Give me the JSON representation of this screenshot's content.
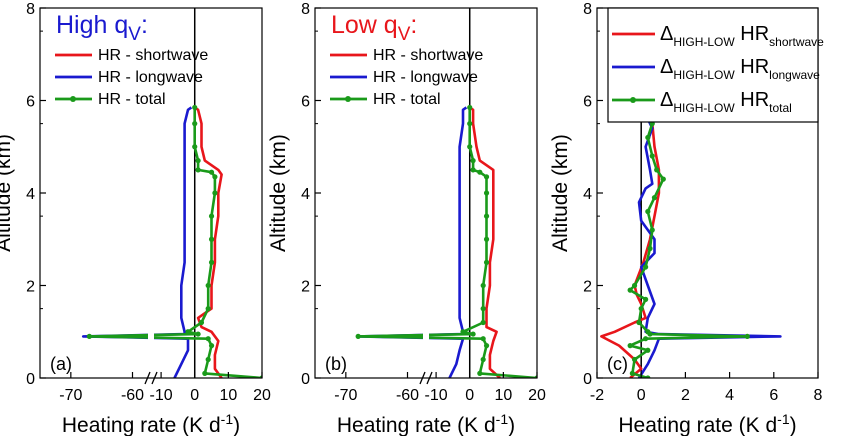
{
  "figure": {
    "colors": {
      "shortwave": "#e8161b",
      "longwave": "#1a1acf",
      "total": "#1a9a1a",
      "axis": "#000000"
    }
  },
  "chart_data": [
    {
      "type": "line",
      "panel_label": "(a)",
      "title": "High q",
      "title_sub": "V",
      "title_suffix": ":",
      "title_color": "#1a1acf",
      "xlabel": "Heating rate (K d",
      "xlabel_sup": "-1",
      "xlabel_close": ")",
      "ylabel": "Altitude (km)",
      "ylim": [
        0,
        8
      ],
      "yticks": [
        0,
        2,
        4,
        6,
        8
      ],
      "xticks": [
        "-70",
        "-60",
        "-10",
        "0",
        "10",
        "20"
      ],
      "xlim_broken": [
        [
          -75,
          -57
        ],
        [
          -13,
          20
        ]
      ],
      "grid": false,
      "legend_position": "top-left",
      "series": [
        {
          "name": "HR - shortwave",
          "color": "#e8161b",
          "key": "sw",
          "points": [
            [
              8,
              0.0
            ],
            [
              6,
              0.2
            ],
            [
              6,
              0.5
            ],
            [
              7,
              0.8
            ],
            [
              5,
              1.0
            ],
            [
              2,
              1.1
            ],
            [
              1,
              1.3
            ],
            [
              5,
              1.5
            ],
            [
              5,
              2.0
            ],
            [
              6,
              2.5
            ],
            [
              6,
              3.0
            ],
            [
              7,
              3.5
            ],
            [
              7,
              4.0
            ],
            [
              8,
              4.4
            ],
            [
              7,
              4.5
            ],
            [
              3,
              4.7
            ],
            [
              2,
              5.0
            ],
            [
              2,
              5.5
            ],
            [
              1,
              5.8
            ],
            [
              0,
              5.85
            ]
          ]
        },
        {
          "name": "HR - longwave",
          "color": "#1a1acf",
          "key": "lw",
          "points": [
            [
              -6,
              0.0
            ],
            [
              -4,
              0.3
            ],
            [
              -2,
              0.6
            ],
            [
              -2,
              0.85
            ],
            [
              -68,
              0.9
            ],
            [
              -3,
              0.95
            ],
            [
              -3,
              1.0
            ],
            [
              -4,
              1.3
            ],
            [
              -4,
              2.0
            ],
            [
              -3,
              2.5
            ],
            [
              -3,
              3.0
            ],
            [
              -3,
              3.5
            ],
            [
              -3,
              4.0
            ],
            [
              -3,
              4.5
            ],
            [
              -3,
              5.0
            ],
            [
              -3,
              5.5
            ],
            [
              -2,
              5.8
            ],
            [
              -1,
              5.85
            ]
          ]
        },
        {
          "name": "HR - total",
          "color": "#1a9a1a",
          "key": "tot",
          "points": [
            [
              20,
              0.0
            ],
            [
              3,
              0.1
            ],
            [
              4,
              0.4
            ],
            [
              5,
              0.7
            ],
            [
              4,
              0.85
            ],
            [
              -67,
              0.9
            ],
            [
              1,
              0.95
            ],
            [
              -2,
              1.0
            ],
            [
              2,
              1.2
            ],
            [
              4,
              1.5
            ],
            [
              4,
              2.0
            ],
            [
              5,
              2.5
            ],
            [
              5,
              3.0
            ],
            [
              5,
              3.5
            ],
            [
              6,
              4.0
            ],
            [
              6,
              4.35
            ],
            [
              5,
              4.45
            ],
            [
              1,
              4.5
            ],
            [
              1,
              4.7
            ],
            [
              0,
              5.0
            ],
            [
              0,
              5.5
            ],
            [
              0,
              5.85
            ]
          ]
        }
      ]
    },
    {
      "type": "line",
      "panel_label": "(b)",
      "title": "Low q",
      "title_sub": "V",
      "title_suffix": ":",
      "title_color": "#e8161b",
      "xlabel": "Heating rate (K d",
      "xlabel_sup": "-1",
      "xlabel_close": ")",
      "ylabel": "Altitude (km)",
      "ylim": [
        0,
        8
      ],
      "yticks": [
        0,
        2,
        4,
        6,
        8
      ],
      "xticks": [
        "-70",
        "-60",
        "-10",
        "0",
        "10",
        "20"
      ],
      "xlim_broken": [
        [
          -75,
          -57
        ],
        [
          -13,
          20
        ]
      ],
      "grid": false,
      "legend_position": "top-left",
      "series": [
        {
          "name": "HR - shortwave",
          "color": "#e8161b",
          "key": "sw",
          "points": [
            [
              9,
              0.0
            ],
            [
              6,
              0.2
            ],
            [
              6,
              0.5
            ],
            [
              7,
              0.8
            ],
            [
              8,
              1.0
            ],
            [
              5,
              1.1
            ],
            [
              5,
              1.3
            ],
            [
              5,
              1.5
            ],
            [
              6,
              2.0
            ],
            [
              6,
              2.5
            ],
            [
              7,
              3.0
            ],
            [
              7,
              3.5
            ],
            [
              7,
              4.0
            ],
            [
              7,
              4.5
            ],
            [
              3,
              4.7
            ],
            [
              2,
              5.0
            ],
            [
              1,
              5.5
            ],
            [
              1,
              5.8
            ],
            [
              0,
              5.85
            ]
          ]
        },
        {
          "name": "HR - longwave",
          "color": "#1a1acf",
          "key": "lw",
          "points": [
            [
              -6,
              0.0
            ],
            [
              -4,
              0.3
            ],
            [
              -3,
              0.6
            ],
            [
              -2,
              0.85
            ],
            [
              -68,
              0.9
            ],
            [
              -2,
              0.95
            ],
            [
              -2,
              1.0
            ],
            [
              -3,
              1.3
            ],
            [
              -3,
              2.0
            ],
            [
              -3,
              2.5
            ],
            [
              -3,
              3.0
            ],
            [
              -3,
              3.5
            ],
            [
              -3,
              4.0
            ],
            [
              -3,
              4.5
            ],
            [
              -3,
              5.0
            ],
            [
              -2,
              5.5
            ],
            [
              -2,
              5.8
            ],
            [
              -1,
              5.85
            ]
          ]
        },
        {
          "name": "HR - total",
          "color": "#1a9a1a",
          "key": "tot",
          "points": [
            [
              20,
              0.0
            ],
            [
              3,
              0.1
            ],
            [
              4,
              0.4
            ],
            [
              5,
              0.7
            ],
            [
              4,
              0.85
            ],
            [
              -68,
              0.9
            ],
            [
              1,
              0.95
            ],
            [
              -2,
              1.0
            ],
            [
              4,
              1.2
            ],
            [
              4,
              1.5
            ],
            [
              4,
              2.0
            ],
            [
              5,
              2.5
            ],
            [
              5,
              3.0
            ],
            [
              5,
              3.5
            ],
            [
              5,
              4.0
            ],
            [
              5,
              4.35
            ],
            [
              3,
              4.45
            ],
            [
              1,
              4.5
            ],
            [
              1,
              4.7
            ],
            [
              0,
              5.0
            ],
            [
              0,
              5.5
            ],
            [
              0,
              5.85
            ]
          ]
        }
      ]
    },
    {
      "type": "line",
      "panel_label": "(c)",
      "xlabel": "Heating rate (K d",
      "xlabel_sup": "-1",
      "xlabel_close": ")",
      "ylabel": "Altitude (km)",
      "xlim": [
        -2,
        8
      ],
      "xticks": [
        -2,
        0,
        2,
        4,
        6,
        8
      ],
      "ylim": [
        0,
        8
      ],
      "yticks": [
        0,
        2,
        4,
        6,
        8
      ],
      "grid": false,
      "legend_position": "top",
      "legend_prefix": "Δ",
      "legend_sub": "HIGH-LOW",
      "legend_mid": " HR",
      "series": [
        {
          "name": "shortwave",
          "color": "#e8161b",
          "key": "sw",
          "points": [
            [
              -0.5,
              0.0
            ],
            [
              0.0,
              0.2
            ],
            [
              -0.3,
              0.4
            ],
            [
              -1.0,
              0.7
            ],
            [
              -1.8,
              0.9
            ],
            [
              -1.2,
              1.0
            ],
            [
              -0.3,
              1.2
            ],
            [
              0.2,
              1.3
            ],
            [
              0.0,
              1.6
            ],
            [
              -0.2,
              1.8
            ],
            [
              -0.3,
              2.0
            ],
            [
              0.1,
              2.5
            ],
            [
              0.4,
              3.0
            ],
            [
              0.6,
              3.5
            ],
            [
              0.8,
              4.0
            ],
            [
              0.8,
              4.5
            ],
            [
              0.6,
              5.0
            ],
            [
              0.5,
              5.5
            ],
            [
              0.3,
              5.8
            ],
            [
              0.1,
              5.85
            ]
          ]
        },
        {
          "name": "longwave",
          "color": "#1a1acf",
          "key": "lw",
          "points": [
            [
              -0.1,
              0.0
            ],
            [
              0.3,
              0.3
            ],
            [
              0.6,
              0.6
            ],
            [
              0.8,
              0.85
            ],
            [
              6.3,
              0.9
            ],
            [
              0.8,
              0.95
            ],
            [
              0.2,
              1.0
            ],
            [
              0.3,
              1.3
            ],
            [
              0.6,
              1.6
            ],
            [
              0.3,
              2.0
            ],
            [
              0.0,
              2.4
            ],
            [
              0.6,
              2.7
            ],
            [
              0.6,
              3.0
            ],
            [
              0.0,
              3.4
            ],
            [
              -0.1,
              3.8
            ],
            [
              0.2,
              4.1
            ],
            [
              0.5,
              4.2
            ],
            [
              0.4,
              4.5
            ],
            [
              0.2,
              5.0
            ],
            [
              0.5,
              5.4
            ],
            [
              0.1,
              5.8
            ],
            [
              -0.1,
              5.85
            ]
          ]
        },
        {
          "name": "total",
          "color": "#1a9a1a",
          "key": "tot",
          "points": [
            [
              0.3,
              0.0
            ],
            [
              -0.4,
              0.1
            ],
            [
              -0.3,
              0.4
            ],
            [
              0.3,
              0.6
            ],
            [
              -0.5,
              0.7
            ],
            [
              0.2,
              0.85
            ],
            [
              4.8,
              0.9
            ],
            [
              0.4,
              0.95
            ],
            [
              0.3,
              1.0
            ],
            [
              -0.1,
              1.2
            ],
            [
              0.0,
              1.5
            ],
            [
              0.2,
              1.7
            ],
            [
              -0.5,
              1.9
            ],
            [
              -0.3,
              2.0
            ],
            [
              0.2,
              2.4
            ],
            [
              0.4,
              2.8
            ],
            [
              0.5,
              3.2
            ],
            [
              0.3,
              3.6
            ],
            [
              0.6,
              3.9
            ],
            [
              1.0,
              4.3
            ],
            [
              0.7,
              4.5
            ],
            [
              0.5,
              4.8
            ],
            [
              0.3,
              5.2
            ],
            [
              0.5,
              5.5
            ],
            [
              0.3,
              5.8
            ],
            [
              0.2,
              5.85
            ]
          ]
        }
      ]
    }
  ]
}
